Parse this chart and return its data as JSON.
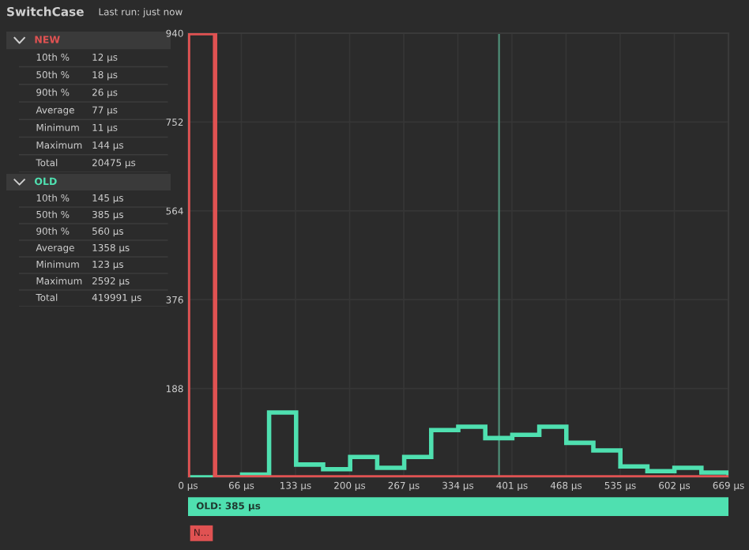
{
  "chart_data": [
    {
      "type": "other",
      "title": "SwitchCase",
      "subtitle": "Last run: just now"
    },
    {
      "type": "other",
      "title": "NEW",
      "color": "#e05252",
      "annotations": [
        "10th %",
        "12 µs",
        "50th %",
        "18 µs",
        "90th %",
        "26 µs",
        "Average",
        "77 µs",
        "Minimum",
        "11 µs",
        "Maximum",
        "144 µs",
        "Total",
        "20475 µs"
      ]
    },
    {
      "type": "other",
      "title": "OLD",
      "color": "#4fe0b0",
      "annotations": [
        "10th %",
        "145 µs",
        "50th %",
        "385 µs",
        "90th %",
        "560 µs",
        "Average",
        "1358 µs",
        "Minimum",
        "123 µs",
        "Maximum",
        "2592 µs",
        "Total",
        "419991 µs"
      ]
    },
    {
      "type": "histogram",
      "bins": [
        0,
        33.45,
        66.9,
        100.35,
        133.8,
        167.25,
        200.7,
        234.15,
        267.6,
        301.05,
        334.5,
        367.95,
        401.4,
        434.85,
        468.3,
        501.75,
        535.2,
        568.65,
        602.1,
        635.55,
        669
      ],
      "series": [
        {
          "color": "#4fe0b0",
          "values": [
            0,
            0,
            6,
            137,
            27,
            17,
            43,
            20,
            43,
            100,
            107,
            83,
            90,
            107,
            73,
            57,
            23,
            13,
            20,
            10
          ]
        },
        {
          "color": "#e05252",
          "values": [
            940,
            0,
            0,
            0,
            0,
            0,
            0,
            0,
            0,
            0,
            0,
            0,
            0,
            0,
            0,
            0,
            0,
            0,
            0,
            0
          ]
        }
      ],
      "xlim": [
        0,
        669
      ],
      "xticks": [
        {
          "value": 0,
          "label": "0 µs"
        },
        {
          "value": 66,
          "label": "66 µs"
        },
        {
          "value": 133,
          "label": "133 µs"
        },
        {
          "value": 200,
          "label": "200 µs"
        },
        {
          "value": 267,
          "label": "267 µs"
        },
        {
          "value": 334,
          "label": "334 µs"
        },
        {
          "value": 401,
          "label": "401 µs"
        },
        {
          "value": 468,
          "label": "468 µs"
        },
        {
          "value": 535,
          "label": "535 µs"
        },
        {
          "value": 602,
          "label": "602 µs"
        },
        {
          "value": 669,
          "label": "669 µs"
        }
      ],
      "ylim": [
        0,
        940
      ],
      "yticks": [
        188,
        376,
        564,
        752,
        940
      ],
      "grid": true,
      "ref_lines": [
        {
          "axis": "x",
          "value": 385,
          "color": "#4f8f78"
        }
      ],
      "annotations": [
        "OLD: 385 µs",
        "N..."
      ]
    }
  ]
}
